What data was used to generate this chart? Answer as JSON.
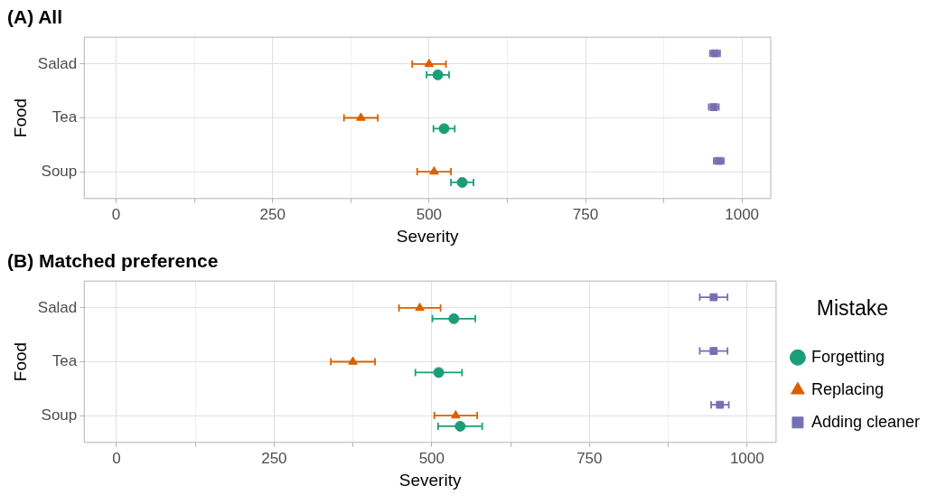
{
  "chart_data": [
    {
      "type": "scatter",
      "orientation": "horizontal",
      "title": "(A) All",
      "xlabel": "Severity",
      "ylabel": "Food",
      "categories": [
        "Salad",
        "Tea",
        "Soup"
      ],
      "xlim": [
        -51,
        1046
      ],
      "xticks": [
        0,
        {
          "value": 125,
          "label": null
        },
        250,
        {
          "value": 375,
          "label": null
        },
        500,
        {
          "value": 625,
          "label": null
        },
        750,
        {
          "value": 875,
          "label": null
        },
        1000
      ],
      "grid": true,
      "legend": false,
      "series": [
        {
          "color": "#1b9e77",
          "marker": "circle",
          "values": [
            514,
            524,
            553
          ],
          "errors": [
            18,
            17,
            18
          ]
        },
        {
          "color": "#d95f02",
          "marker": "triangle",
          "values": [
            500,
            391,
            508
          ],
          "errors": [
            27,
            27,
            27
          ]
        },
        {
          "color": "#7570b3",
          "marker": "square",
          "values": [
            957,
            955,
            963
          ],
          "errors": [
            8,
            8,
            8
          ]
        }
      ]
    },
    {
      "type": "scatter",
      "orientation": "horizontal",
      "title": "(B) Matched preference",
      "xlabel": "Severity",
      "ylabel": "Food",
      "categories": [
        "Salad",
        "Tea",
        "Soup"
      ],
      "xlim": [
        -51,
        1046
      ],
      "xticks": [
        0,
        {
          "value": 125,
          "label": null
        },
        250,
        {
          "value": 375,
          "label": null
        },
        500,
        {
          "value": 625,
          "label": null
        },
        750,
        {
          "value": 875,
          "label": null
        },
        1000
      ],
      "grid": true,
      "legend": "right",
      "legend_title": "Mistake",
      "series": [
        {
          "name": "Forgetting",
          "color": "#1b9e77",
          "marker": "circle",
          "values": [
            535,
            511,
            545
          ],
          "errors": [
            34,
            37,
            35
          ]
        },
        {
          "name": "Replacing",
          "color": "#d95f02",
          "marker": "triangle",
          "values": [
            481,
            375,
            538
          ],
          "errors": [
            33,
            35,
            34
          ]
        },
        {
          "name": "Adding cleaner",
          "color": "#7570b3",
          "marker": "square",
          "values": [
            947,
            947,
            957
          ],
          "errors": [
            22,
            22,
            14
          ]
        }
      ]
    }
  ]
}
